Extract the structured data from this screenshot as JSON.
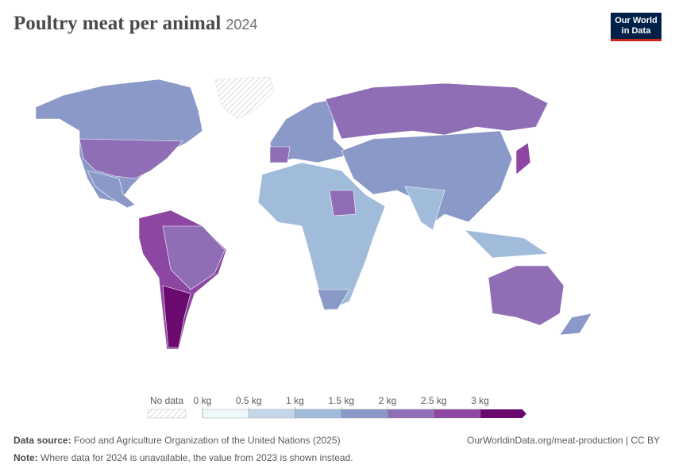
{
  "header": {
    "title": "Poultry meat per animal",
    "year": "2024",
    "logo": [
      "Our World",
      "in Data"
    ]
  },
  "legend": {
    "no_data_label": "No data",
    "ticks": [
      {
        "value": 0,
        "label": "0 kg"
      },
      {
        "value": 0.5,
        "label": "0.5 kg"
      },
      {
        "value": 1,
        "label": "1 kg"
      },
      {
        "value": 1.5,
        "label": "1.5 kg"
      },
      {
        "value": 2,
        "label": "2 kg"
      },
      {
        "value": 2.5,
        "label": "2.5 kg"
      },
      {
        "value": 3,
        "label": "3 kg"
      }
    ],
    "colors": [
      "#eef8fb",
      "#c4d6e8",
      "#a1bcdb",
      "#8b99c9",
      "#8f6eb5",
      "#8d46a1",
      "#6a0a6e"
    ]
  },
  "footer": {
    "source_label": "Data source:",
    "source": "Food and Agriculture Organization of the United Nations (2025)",
    "url": "OurWorldinData.org/meat-production | CC BY",
    "note_label": "Note:",
    "note": "Where data for 2024 is unavailable, the value from 2023 is shown instead."
  }
}
